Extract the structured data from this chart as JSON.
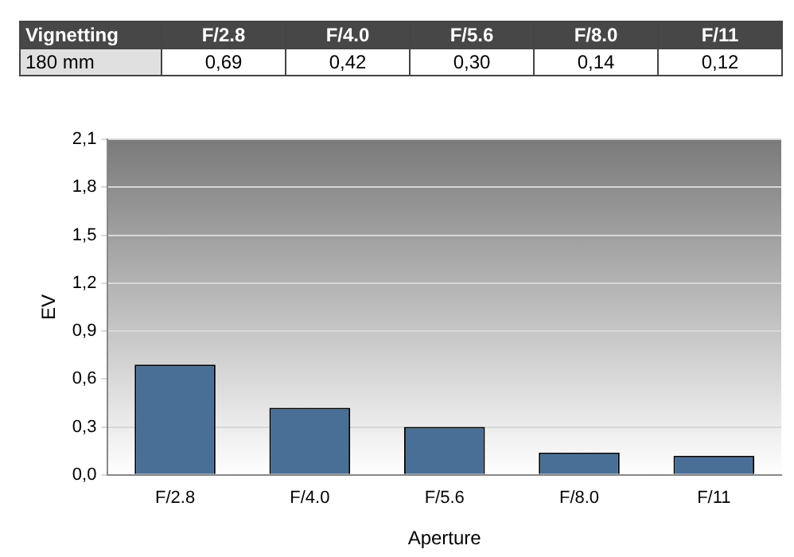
{
  "chart_data": {
    "type": "bar",
    "title": "Vignetting",
    "xlabel": "Aperture",
    "ylabel": "EV",
    "categories": [
      "F/2.8",
      "F/4.0",
      "F/5.6",
      "F/8.0",
      "F/11"
    ],
    "series": [
      {
        "name": "180 mm",
        "color": "#4a6f96",
        "values": [
          0.69,
          0.42,
          0.3,
          0.14,
          0.12
        ],
        "value_labels": [
          "0,69",
          "0,42",
          "0,30",
          "0,14",
          "0,12"
        ]
      }
    ],
    "ylim": [
      0,
      2.1
    ],
    "yticks": [
      {
        "value": 0,
        "label": "0,0"
      },
      {
        "value": 0.3,
        "label": "0,3"
      },
      {
        "value": 0.6,
        "label": "0,6"
      },
      {
        "value": 0.9,
        "label": "0,9"
      },
      {
        "value": 1.2,
        "label": "1,2"
      },
      {
        "value": 1.5,
        "label": "1,5"
      },
      {
        "value": 1.8,
        "label": "1,8"
      },
      {
        "value": 2.1,
        "label": "2,1"
      }
    ],
    "grid": "y",
    "legend": false
  }
}
